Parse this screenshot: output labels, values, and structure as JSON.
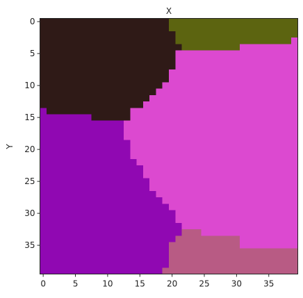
{
  "chart_data": {
    "type": "heatmap",
    "title": "",
    "xlabel": "X",
    "ylabel": "Y",
    "xlim": [
      -0.5,
      39.5
    ],
    "ylim": [
      39.5,
      -0.5
    ],
    "x_ticks": [
      0,
      5,
      10,
      15,
      20,
      25,
      30,
      35
    ],
    "y_ticks": [
      0,
      5,
      10,
      15,
      20,
      25,
      30,
      35
    ],
    "grid": false,
    "colors": {
      "A": "#2f1a17",
      "B": "#5c6410",
      "C": "#dc49d0",
      "D": "#9008b2",
      "E": "#b85b84"
    },
    "row_runs": [
      [
        [
          "A",
          20
        ],
        [
          "B",
          20
        ]
      ],
      [
        [
          "A",
          20
        ],
        [
          "B",
          20
        ]
      ],
      [
        [
          "A",
          21
        ],
        [
          "B",
          19
        ]
      ],
      [
        [
          "A",
          21
        ],
        [
          "B",
          18
        ],
        [
          "C",
          1
        ]
      ],
      [
        [
          "A",
          22
        ],
        [
          "B",
          9
        ],
        [
          "C",
          9
        ]
      ],
      [
        [
          "A",
          21
        ],
        [
          "C",
          19
        ]
      ],
      [
        [
          "A",
          21
        ],
        [
          "C",
          19
        ]
      ],
      [
        [
          "A",
          21
        ],
        [
          "C",
          19
        ]
      ],
      [
        [
          "A",
          20
        ],
        [
          "C",
          20
        ]
      ],
      [
        [
          "A",
          20
        ],
        [
          "C",
          20
        ]
      ],
      [
        [
          "A",
          19
        ],
        [
          "C",
          21
        ]
      ],
      [
        [
          "A",
          18
        ],
        [
          "C",
          22
        ]
      ],
      [
        [
          "A",
          17
        ],
        [
          "C",
          23
        ]
      ],
      [
        [
          "A",
          16
        ],
        [
          "C",
          24
        ]
      ],
      [
        [
          "D",
          1
        ],
        [
          "A",
          13
        ],
        [
          "C",
          26
        ]
      ],
      [
        [
          "D",
          8
        ],
        [
          "A",
          6
        ],
        [
          "C",
          26
        ]
      ],
      [
        [
          "D",
          13
        ],
        [
          "C",
          27
        ]
      ],
      [
        [
          "D",
          13
        ],
        [
          "C",
          27
        ]
      ],
      [
        [
          "D",
          13
        ],
        [
          "C",
          27
        ]
      ],
      [
        [
          "D",
          14
        ],
        [
          "C",
          26
        ]
      ],
      [
        [
          "D",
          14
        ],
        [
          "C",
          26
        ]
      ],
      [
        [
          "D",
          14
        ],
        [
          "C",
          26
        ]
      ],
      [
        [
          "D",
          15
        ],
        [
          "C",
          25
        ]
      ],
      [
        [
          "D",
          16
        ],
        [
          "C",
          24
        ]
      ],
      [
        [
          "D",
          16
        ],
        [
          "C",
          24
        ]
      ],
      [
        [
          "D",
          17
        ],
        [
          "C",
          23
        ]
      ],
      [
        [
          "D",
          17
        ],
        [
          "C",
          23
        ]
      ],
      [
        [
          "D",
          18
        ],
        [
          "C",
          22
        ]
      ],
      [
        [
          "D",
          19
        ],
        [
          "C",
          21
        ]
      ],
      [
        [
          "D",
          20
        ],
        [
          "C",
          20
        ]
      ],
      [
        [
          "D",
          21
        ],
        [
          "C",
          19
        ]
      ],
      [
        [
          "D",
          21
        ],
        [
          "C",
          19
        ]
      ],
      [
        [
          "D",
          22
        ],
        [
          "C",
          18
        ]
      ],
      [
        [
          "D",
          22
        ],
        [
          "E",
          3
        ],
        [
          "C",
          15
        ]
      ],
      [
        [
          "D",
          21
        ],
        [
          "E",
          10
        ],
        [
          "C",
          9
        ]
      ],
      [
        [
          "D",
          20
        ],
        [
          "E",
          11
        ],
        [
          "C",
          9
        ]
      ],
      [
        [
          "D",
          20
        ],
        [
          "E",
          20
        ]
      ],
      [
        [
          "D",
          20
        ],
        [
          "E",
          20
        ]
      ],
      [
        [
          "D",
          20
        ],
        [
          "E",
          20
        ]
      ],
      [
        [
          "D",
          19
        ],
        [
          "E",
          21
        ]
      ]
    ]
  }
}
